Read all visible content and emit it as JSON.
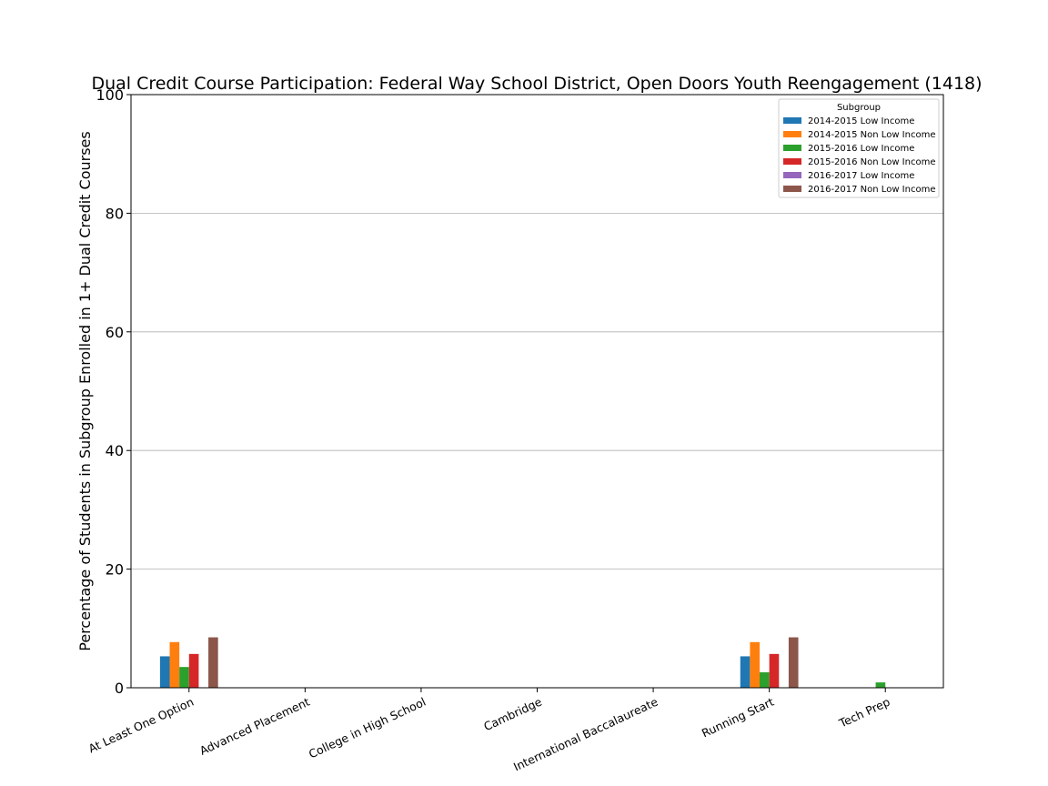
{
  "chart_data": {
    "type": "bar",
    "title": "Dual Credit Course Participation: Federal Way School District, Open Doors Youth Reengagement (1418)",
    "xlabel": "",
    "ylabel": "Percentage of Students in Subgroup Enrolled in 1+ Dual Credit Courses",
    "ylim": [
      0,
      100
    ],
    "yticks": [
      0,
      20,
      40,
      60,
      80,
      100
    ],
    "grid": "y",
    "legend": {
      "title": "Subgroup",
      "placement": "top-right"
    },
    "categories": [
      "At Least One Option",
      "Advanced Placement",
      "College in High School",
      "Cambridge",
      "International Baccalaureate",
      "Running Start",
      "Tech Prep"
    ],
    "series": [
      {
        "name": "2014-2015 Low Income",
        "color": "#1f77b4",
        "values": [
          5.3,
          0,
          0,
          0,
          0,
          5.3,
          0
        ]
      },
      {
        "name": "2014-2015 Non Low Income",
        "color": "#ff7f0e",
        "values": [
          7.7,
          0,
          0,
          0,
          0,
          7.7,
          0
        ]
      },
      {
        "name": "2015-2016 Low Income",
        "color": "#2ca02c",
        "values": [
          3.5,
          0,
          0,
          0,
          0,
          2.6,
          0.9
        ]
      },
      {
        "name": "2015-2016 Non Low Income",
        "color": "#d62728",
        "values": [
          5.7,
          0,
          0,
          0,
          0,
          5.7,
          0
        ]
      },
      {
        "name": "2016-2017 Low Income",
        "color": "#9467bd",
        "values": [
          0,
          0,
          0,
          0,
          0,
          0,
          0
        ]
      },
      {
        "name": "2016-2017 Non Low Income",
        "color": "#8c564b",
        "values": [
          8.5,
          0,
          0,
          0,
          0,
          8.5,
          0
        ]
      }
    ]
  }
}
